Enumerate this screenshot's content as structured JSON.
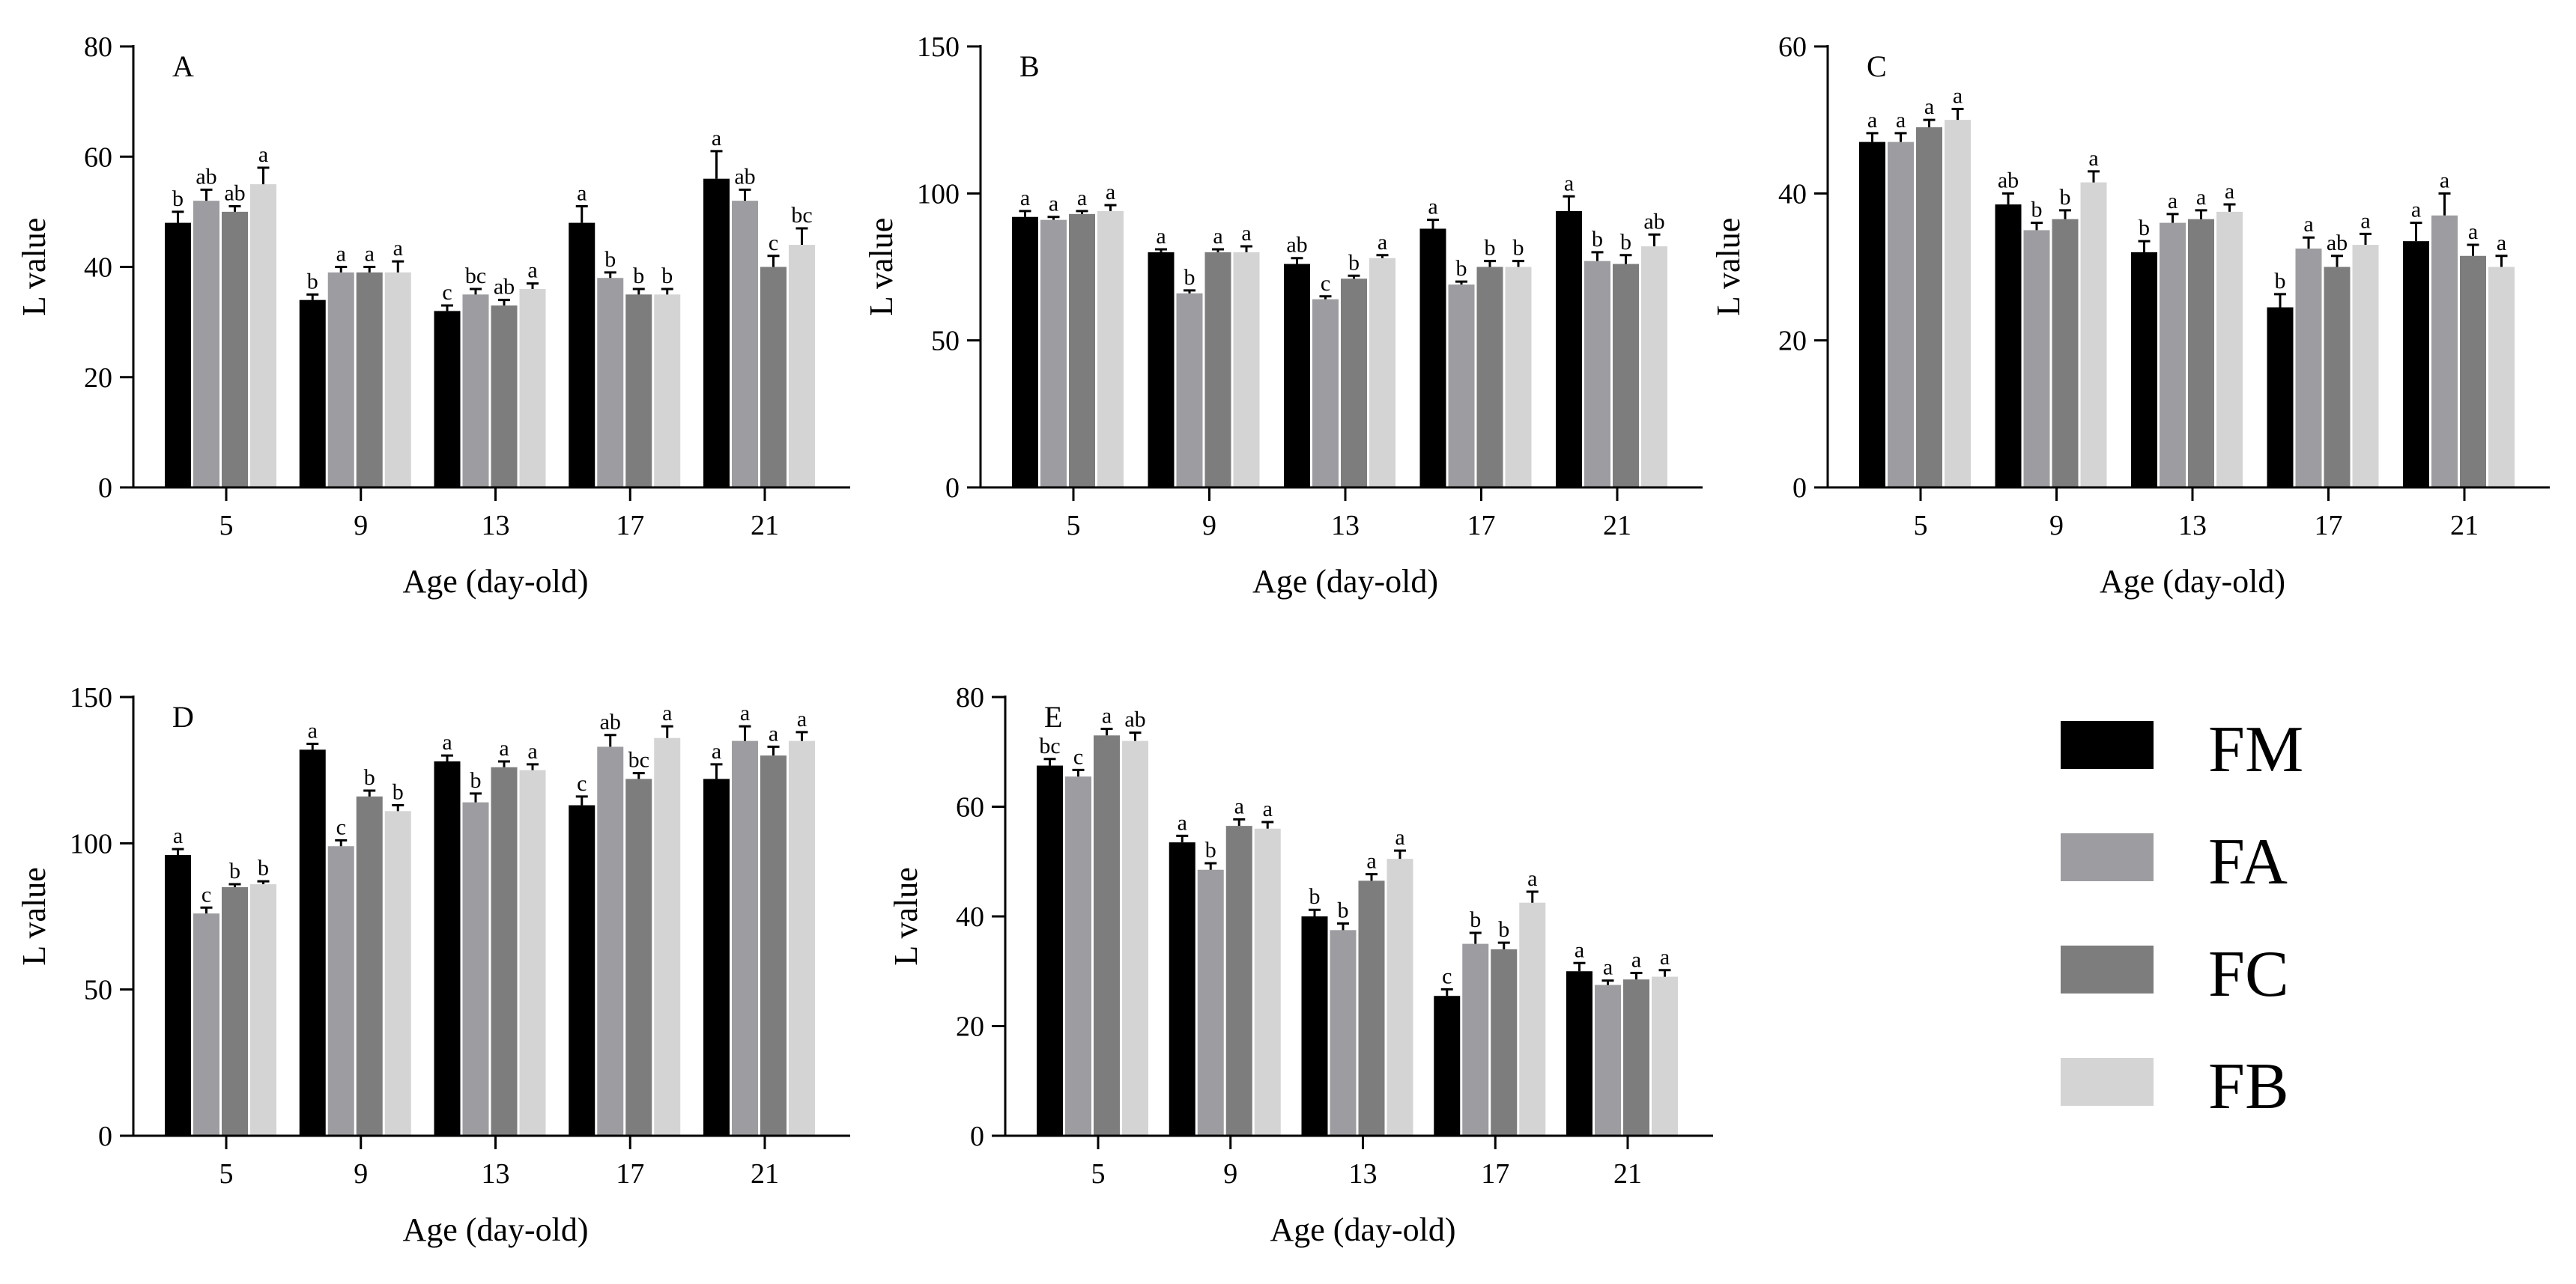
{
  "legend": {
    "items": [
      {
        "label": "FM",
        "color": "#000000"
      },
      {
        "label": "FA",
        "color": "#9d9da1"
      },
      {
        "label": "FC",
        "color": "#7d7d7d"
      },
      {
        "label": "FB",
        "color": "#d4d4d4"
      }
    ]
  },
  "chart_data": [
    {
      "type": "bar",
      "panel": "A",
      "xlabel": "Age (day-old)",
      "ylabel": "L value",
      "categories": [
        "5",
        "9",
        "13",
        "17",
        "21"
      ],
      "ylim": [
        0,
        80
      ],
      "yticks": [
        0,
        20,
        40,
        60,
        80
      ],
      "grid": false,
      "series": [
        {
          "name": "FM",
          "values": [
            48,
            34,
            32,
            48,
            56
          ],
          "errors": [
            2,
            1,
            1,
            3,
            5
          ],
          "labels": [
            "b",
            "b",
            "c",
            "a",
            "a"
          ]
        },
        {
          "name": "FA",
          "values": [
            52,
            39,
            35,
            38,
            52
          ],
          "errors": [
            2,
            1,
            1,
            1,
            2
          ],
          "labels": [
            "ab",
            "a",
            "bc",
            "b",
            "ab"
          ]
        },
        {
          "name": "FC",
          "values": [
            50,
            39,
            33,
            35,
            40
          ],
          "errors": [
            1,
            1,
            1,
            1,
            2
          ],
          "labels": [
            "ab",
            "a",
            "ab",
            "b",
            "c"
          ]
        },
        {
          "name": "FB",
          "values": [
            55,
            39,
            36,
            35,
            44
          ],
          "errors": [
            3,
            2,
            1,
            1,
            3
          ],
          "labels": [
            "a",
            "a",
            "a",
            "b",
            "bc"
          ]
        }
      ]
    },
    {
      "type": "bar",
      "panel": "B",
      "xlabel": "Age (day-old)",
      "ylabel": "L value",
      "categories": [
        "5",
        "9",
        "13",
        "17",
        "21"
      ],
      "ylim": [
        0,
        150
      ],
      "yticks": [
        0,
        50,
        100,
        150
      ],
      "grid": false,
      "series": [
        {
          "name": "FM",
          "values": [
            92,
            80,
            76,
            88,
            94
          ],
          "errors": [
            2,
            1,
            2,
            3,
            5
          ],
          "labels": [
            "a",
            "a",
            "ab",
            "a",
            "a"
          ]
        },
        {
          "name": "FA",
          "values": [
            91,
            66,
            64,
            69,
            77
          ],
          "errors": [
            1,
            1,
            1,
            1,
            3
          ],
          "labels": [
            "a",
            "b",
            "c",
            "b",
            "b"
          ]
        },
        {
          "name": "FC",
          "values": [
            93,
            80,
            71,
            75,
            76
          ],
          "errors": [
            1,
            1,
            1,
            2,
            3
          ],
          "labels": [
            "a",
            "a",
            "b",
            "b",
            "b"
          ]
        },
        {
          "name": "FB",
          "values": [
            94,
            80,
            78,
            75,
            82
          ],
          "errors": [
            2,
            2,
            1,
            2,
            4
          ],
          "labels": [
            "a",
            "a",
            "a",
            "b",
            "ab"
          ]
        }
      ]
    },
    {
      "type": "bar",
      "panel": "C",
      "xlabel": "Age (day-old)",
      "ylabel": "L value",
      "categories": [
        "5",
        "9",
        "13",
        "17",
        "21"
      ],
      "ylim": [
        0,
        60
      ],
      "yticks": [
        0,
        20,
        40,
        60
      ],
      "grid": false,
      "series": [
        {
          "name": "FM",
          "values": [
            47,
            38.5,
            32,
            24.5,
            33.5
          ],
          "errors": [
            1.2,
            1.5,
            1.5,
            1.8,
            2.5
          ],
          "labels": [
            "a",
            "ab",
            "b",
            "b",
            "a"
          ]
        },
        {
          "name": "FA",
          "values": [
            47,
            35,
            36,
            32.5,
            37
          ],
          "errors": [
            1.2,
            1,
            1.2,
            1.5,
            3
          ],
          "labels": [
            "a",
            "b",
            "a",
            "a",
            "a"
          ]
        },
        {
          "name": "FC",
          "values": [
            49,
            36.5,
            36.5,
            30,
            31.5
          ],
          "errors": [
            1,
            1.2,
            1.2,
            1.5,
            1.5
          ],
          "labels": [
            "a",
            "b",
            "a",
            "ab",
            "a"
          ]
        },
        {
          "name": "FB",
          "values": [
            50,
            41.5,
            37.5,
            33,
            30
          ],
          "errors": [
            1.5,
            1.5,
            1,
            1.5,
            1.5
          ],
          "labels": [
            "a",
            "a",
            "a",
            "a",
            "a"
          ]
        }
      ]
    },
    {
      "type": "bar",
      "panel": "D",
      "xlabel": "Age (day-old)",
      "ylabel": "L value",
      "categories": [
        "5",
        "9",
        "13",
        "17",
        "21"
      ],
      "ylim": [
        0,
        150
      ],
      "yticks": [
        0,
        50,
        100,
        150
      ],
      "grid": false,
      "series": [
        {
          "name": "FM",
          "values": [
            96,
            132,
            128,
            113,
            122
          ],
          "errors": [
            2,
            2,
            2,
            3,
            5
          ],
          "labels": [
            "a",
            "a",
            "a",
            "c",
            "a"
          ]
        },
        {
          "name": "FA",
          "values": [
            76,
            99,
            114,
            133,
            135
          ],
          "errors": [
            2,
            2,
            3,
            4,
            5
          ],
          "labels": [
            "c",
            "c",
            "b",
            "ab",
            "a"
          ]
        },
        {
          "name": "FC",
          "values": [
            85,
            116,
            126,
            122,
            130
          ],
          "errors": [
            1,
            2,
            2,
            2,
            3
          ],
          "labels": [
            "b",
            "b",
            "a",
            "bc",
            "a"
          ]
        },
        {
          "name": "FB",
          "values": [
            86,
            111,
            125,
            136,
            135
          ],
          "errors": [
            1,
            2,
            2,
            4,
            3
          ],
          "labels": [
            "b",
            "b",
            "a",
            "a",
            "a"
          ]
        }
      ]
    },
    {
      "type": "bar",
      "panel": "E",
      "xlabel": "Age (day-old)",
      "ylabel": "L value",
      "categories": [
        "5",
        "9",
        "13",
        "17",
        "21"
      ],
      "ylim": [
        0,
        80
      ],
      "yticks": [
        0,
        20,
        40,
        60,
        80
      ],
      "grid": false,
      "series": [
        {
          "name": "FM",
          "values": [
            67.5,
            53.5,
            40,
            25.5,
            30
          ],
          "errors": [
            1.2,
            1.2,
            1.2,
            1.2,
            1.5
          ],
          "labels": [
            "bc",
            "a",
            "b",
            "c",
            "a"
          ]
        },
        {
          "name": "FA",
          "values": [
            65.5,
            48.5,
            37.5,
            35,
            27.5
          ],
          "errors": [
            1.2,
            1.2,
            1.2,
            2,
            0.8
          ],
          "labels": [
            "c",
            "b",
            "b",
            "b",
            "a"
          ]
        },
        {
          "name": "FC",
          "values": [
            73,
            56.5,
            46.5,
            34,
            28.5
          ],
          "errors": [
            1.2,
            1.2,
            1.2,
            1.2,
            1.2
          ],
          "labels": [
            "a",
            "a",
            "a",
            "b",
            "a"
          ]
        },
        {
          "name": "FB",
          "values": [
            72,
            56,
            50.5,
            42.5,
            29
          ],
          "errors": [
            1.5,
            1.2,
            1.5,
            2,
            1.2
          ],
          "labels": [
            "ab",
            "a",
            "a",
            "a",
            "a"
          ]
        }
      ]
    }
  ]
}
